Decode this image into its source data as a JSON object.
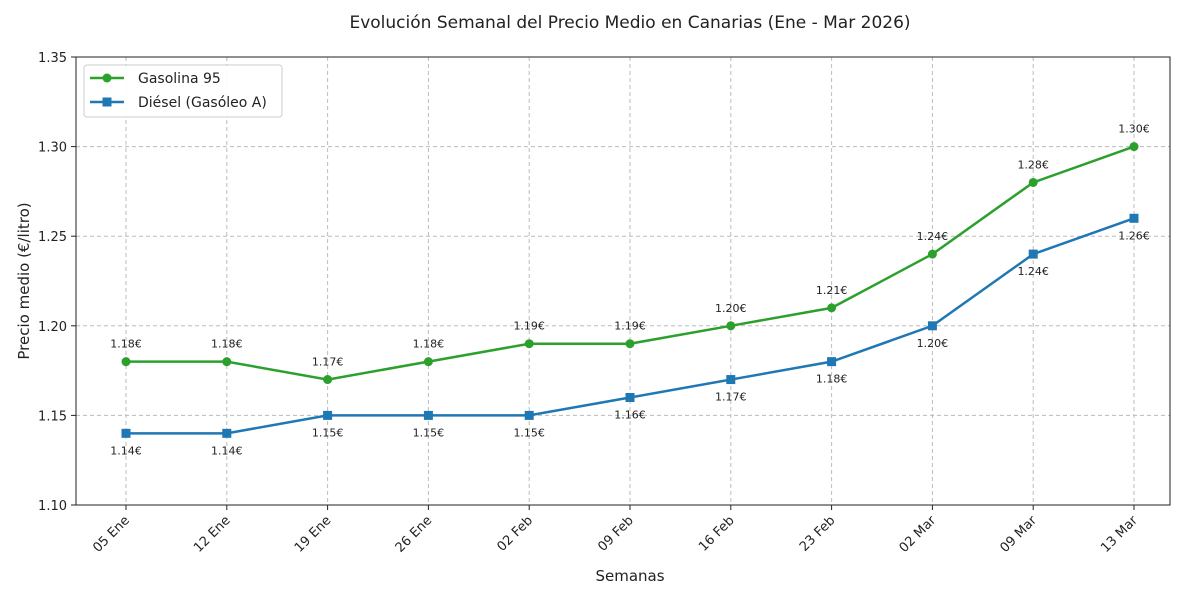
{
  "chart_data": {
    "type": "line",
    "title": "Evolución Semanal del Precio Medio en Canarias (Ene - Mar 2026)",
    "xlabel": "Semanas",
    "ylabel": "Precio medio (€/litro)",
    "categories": [
      "05 Ene",
      "12 Ene",
      "19 Ene",
      "26 Ene",
      "02 Feb",
      "09 Feb",
      "16 Feb",
      "23 Feb",
      "02 Mar",
      "09 Mar",
      "13 Mar"
    ],
    "ylim": [
      1.1,
      1.35
    ],
    "yticks": [
      "1.10",
      "1.15",
      "1.20",
      "1.25",
      "1.30",
      "1.35"
    ],
    "grid": true,
    "legend_position": "top-left",
    "value_suffix": "€",
    "series": [
      {
        "name": "Gasolina 95",
        "color": "#2ca02c",
        "marker": "circle",
        "values": [
          1.18,
          1.18,
          1.17,
          1.18,
          1.19,
          1.19,
          1.2,
          1.21,
          1.24,
          1.28,
          1.3
        ]
      },
      {
        "name": "Diésel (Gasóleo A)",
        "color": "#1f77b4",
        "marker": "square",
        "values": [
          1.14,
          1.14,
          1.15,
          1.15,
          1.15,
          1.16,
          1.17,
          1.18,
          1.2,
          1.24,
          1.26
        ]
      }
    ]
  }
}
